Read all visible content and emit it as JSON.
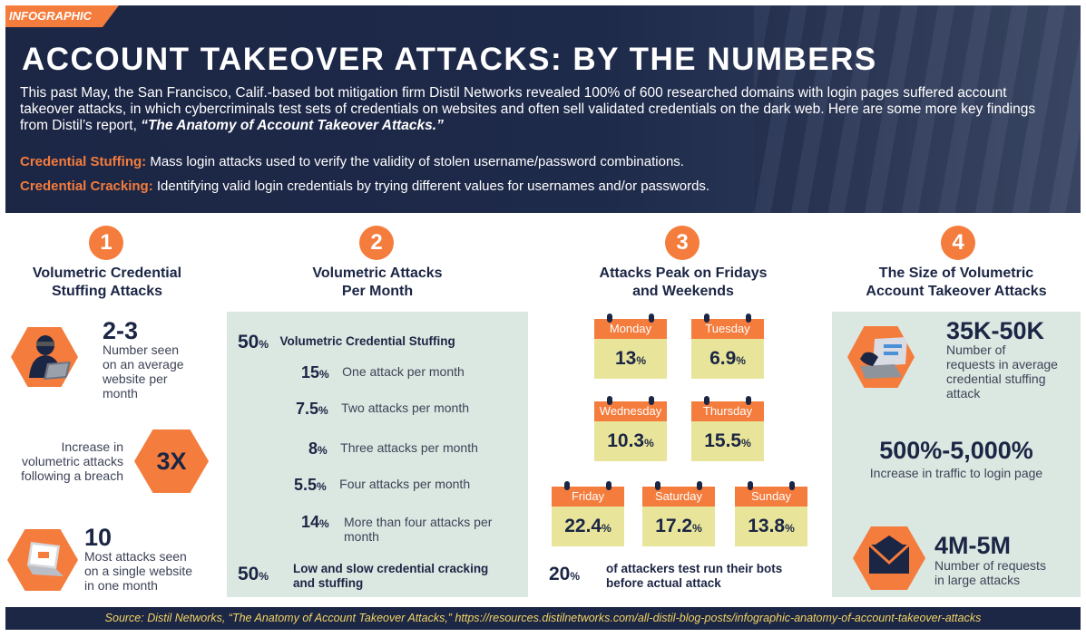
{
  "header": {
    "badge": "INFOGRAPHIC",
    "title": "ACCOUNT TAKEOVER ATTACKS: BY THE NUMBERS",
    "intro": "This past May, the San Francisco, Calif.-based bot mitigation firm Distil Networks revealed 100% of 600 researched domains with login pages suffered account takeover attacks, in which cybercriminals test sets of credentials on websites and often sell validated credentials on the dark web. Here are some more key findings from Distil’s report, ",
    "report_title": "“The Anatomy of Account Takeover Attacks.”",
    "definitions": [
      {
        "term": "Credential Stuffing:",
        "text": "Mass login attacks used to verify the validity of stolen username/password combinations."
      },
      {
        "term": "Credential Cracking:",
        "text": "Identifying valid login credentials by trying different values for usernames and/or passwords."
      }
    ]
  },
  "col1": {
    "number": "1",
    "title_line1": "Volumetric Credential",
    "title_line2": "Stuffing Attacks",
    "stat1": {
      "value": "2-3",
      "line1": "Number seen",
      "line2": "on an average",
      "line3": "website per",
      "line4": "month"
    },
    "stat2": {
      "value": "3X",
      "line1": "Increase in",
      "line2": "volumetric attacks",
      "line3": "following a breach"
    },
    "stat3": {
      "value": "10",
      "line1": "Most attacks seen",
      "line2": "on a single website",
      "line3": "in one month"
    },
    "icons": [
      "hacker-laptop-icon",
      "laptop-icon"
    ]
  },
  "col2": {
    "number": "2",
    "title_line1": "Volumetric Attacks",
    "title_line2": "Per Month",
    "pct_sign": "%",
    "top": {
      "value": "50",
      "label": "Volumetric Credential Stuffing"
    },
    "rows": [
      {
        "value": "15",
        "label": "One attack per month"
      },
      {
        "value": "7.5",
        "label": "Two attacks per month"
      },
      {
        "value": "8",
        "label": "Three attacks per month"
      },
      {
        "value": "5.5",
        "label": "Four attacks per month"
      },
      {
        "value": "14",
        "label_line1": "More than four attacks per",
        "label_line2": "month"
      }
    ],
    "bottom": {
      "value": "50",
      "label_line1": "Low and slow credential cracking",
      "label_line2": "and stuffing"
    }
  },
  "col3": {
    "number": "3",
    "title_line1": "Attacks Peak on Fridays",
    "title_line2": "and Weekends",
    "pct_sign": "%",
    "days": [
      {
        "day": "Monday",
        "value": "13"
      },
      {
        "day": "Tuesday",
        "value": "6.9"
      },
      {
        "day": "Wednesday",
        "value": "10.3"
      },
      {
        "day": "Thursday",
        "value": "15.5"
      },
      {
        "day": "Friday",
        "value": "22.4"
      },
      {
        "day": "Saturday",
        "value": "17.2"
      },
      {
        "day": "Sunday",
        "value": "13.8"
      }
    ],
    "testrun": {
      "value": "20",
      "line1": "of attackers test run their bots",
      "line2": "before actual attack"
    }
  },
  "col4": {
    "number": "4",
    "title_line1": "The Size of Volumetric",
    "title_line2": "Account Takeover Attacks",
    "stat1": {
      "value": "35K-50K",
      "line1": "Number of",
      "line2": "requests in average",
      "line3": "credential stuffing",
      "line4": "attack"
    },
    "stat2": {
      "value": "500%-5,000%",
      "line1": "Increase in traffic to login page"
    },
    "stat3": {
      "value": "4M-5M",
      "line1": "Number of requests",
      "line2": "in large attacks"
    },
    "icons": [
      "hand-keyboard-icon",
      "envelope-icon"
    ]
  },
  "footer": {
    "source": "Source: Distil Networks, “The Anatomy of Account Takeover Attacks,” https://resources.distilnetworks.com/all-distil-blog-posts/infographic-anatomy-of-account-takeover-attacks"
  },
  "colors": {
    "navy": "#1c2645",
    "orange": "#f47c3c",
    "panel": "#dbe7e1",
    "calendar": "#e8e59b",
    "footer_text": "#f2d463"
  }
}
